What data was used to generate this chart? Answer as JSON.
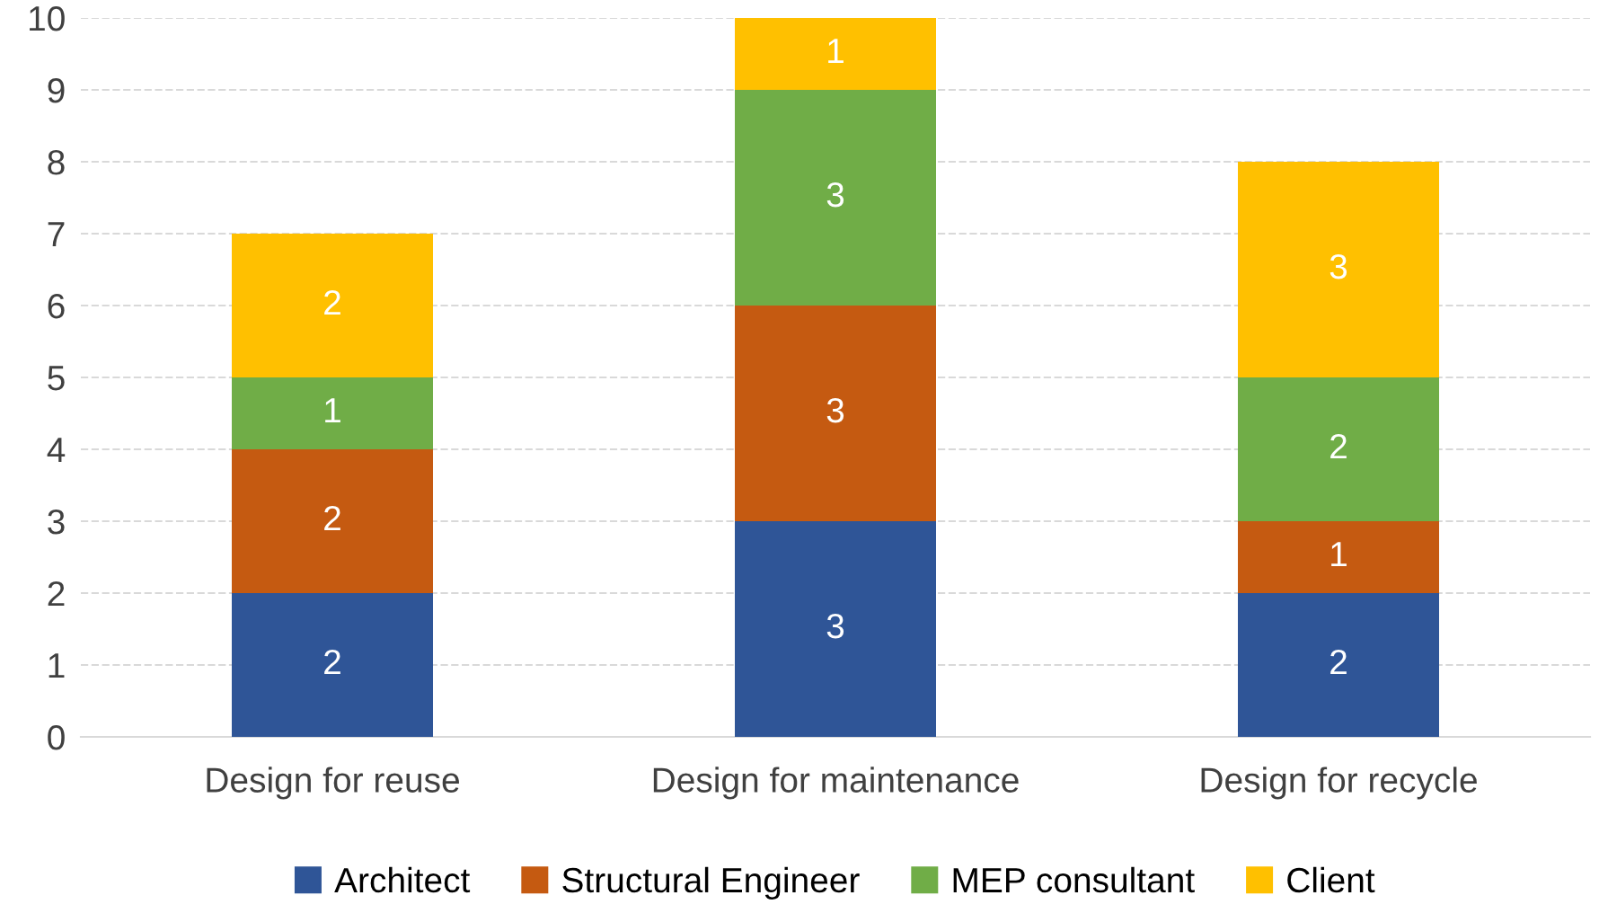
{
  "chart_data": {
    "type": "bar",
    "stacked": true,
    "categories": [
      "Design for reuse",
      "Design for maintenance",
      "Design for recycle"
    ],
    "series": [
      {
        "name": "Architect",
        "color": "#2f5597",
        "values": [
          2,
          3,
          2
        ]
      },
      {
        "name": "Structural Engineer",
        "color": "#c55a11",
        "values": [
          2,
          3,
          1
        ]
      },
      {
        "name": "MEP consultant",
        "color": "#70ad47",
        "values": [
          1,
          3,
          2
        ]
      },
      {
        "name": "Client",
        "color": "#ffc000",
        "values": [
          2,
          1,
          3
        ]
      }
    ],
    "ylim": [
      0,
      10
    ],
    "yticks": [
      0,
      1,
      2,
      3,
      4,
      5,
      6,
      7,
      8,
      9,
      10
    ],
    "grid": "y",
    "legend": "bottom",
    "data_labels": true
  }
}
